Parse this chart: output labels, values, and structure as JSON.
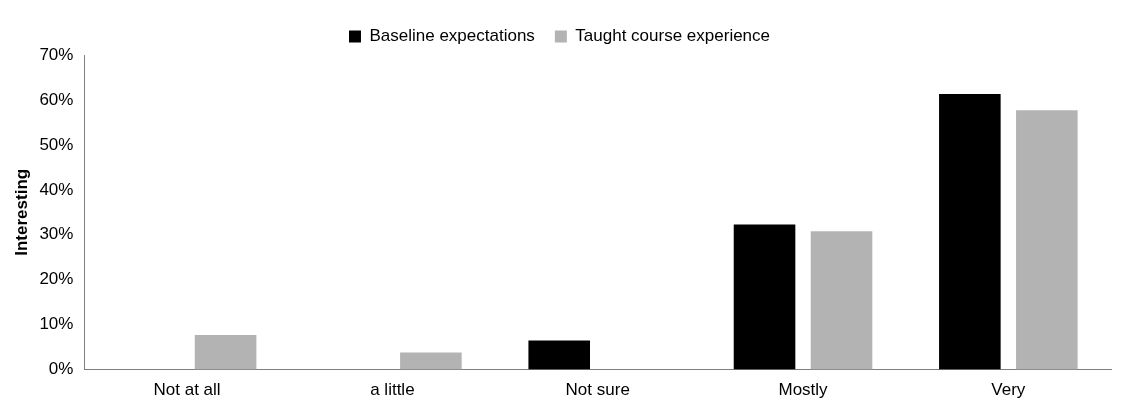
{
  "chart_data": {
    "type": "bar",
    "ylabel": "Interesting",
    "categories": [
      "Not at all",
      "a little",
      "Not sure",
      "Mostly",
      "Very"
    ],
    "series": [
      {
        "name": "Baseline expectations",
        "color": "#000000",
        "values": [
          0,
          0,
          6.5,
          32.3,
          61.3
        ]
      },
      {
        "name": "Taught course experience",
        "color": "#b3b3b3",
        "values": [
          7.7,
          3.8,
          0,
          30.8,
          57.7
        ]
      }
    ],
    "ylim": [
      0,
      70
    ],
    "yticks": [
      {
        "value": 0,
        "label": "0%"
      },
      {
        "value": 10,
        "label": "10%"
      },
      {
        "value": 20,
        "label": "20%"
      },
      {
        "value": 30,
        "label": "30%"
      },
      {
        "value": 40,
        "label": "40%"
      },
      {
        "value": 50,
        "label": "50%"
      },
      {
        "value": 60,
        "label": "60%"
      },
      {
        "value": 70,
        "label": "70%"
      }
    ],
    "grid": false,
    "legend": "top"
  }
}
